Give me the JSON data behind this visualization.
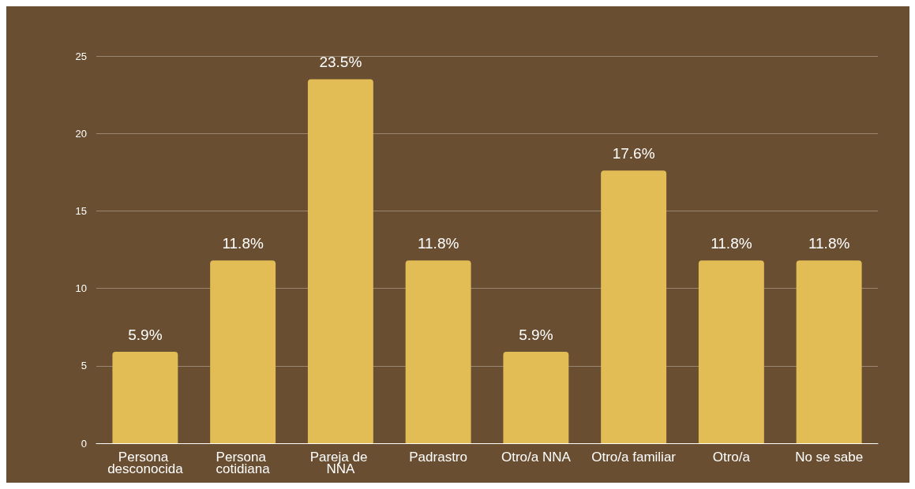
{
  "chart_data": {
    "type": "bar",
    "categories": [
      "Persona desconocida",
      "Persona cotidiana",
      "Pareja de NNA",
      "Padrastro",
      "Otro/a NNA",
      "Otro/a familiar",
      "Otro/a",
      "No se sabe"
    ],
    "values": [
      5.9,
      11.8,
      23.5,
      11.8,
      5.9,
      17.6,
      11.8,
      11.8
    ],
    "value_labels": [
      "5.9%",
      "11.8%",
      "23.5%",
      "11.8%",
      "5.9%",
      "17.6%",
      "11.8%",
      "11.8%"
    ],
    "color": "#e2bc55",
    "ylim": [
      0,
      25
    ],
    "yticks": [
      0,
      5,
      10,
      15,
      20,
      25
    ],
    "grid": "y"
  }
}
